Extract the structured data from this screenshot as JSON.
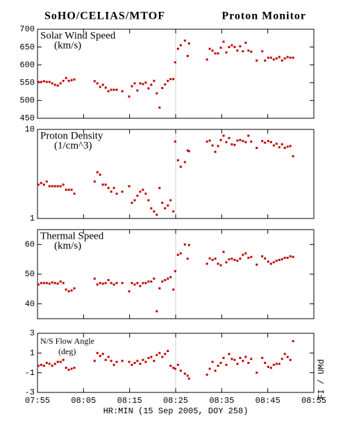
{
  "header": {
    "left": "SoHO/CELIAS/MTOF",
    "right": "Proton Monitor"
  },
  "credit": "FI / UMd",
  "chart_data": [
    {
      "type": "scatter",
      "ylabel": [
        "Solar Wind Speed",
        "(km/s)"
      ],
      "color": "#c00000",
      "ylim": [
        450,
        700
      ],
      "yticks": [
        450,
        500,
        550,
        600,
        650,
        700
      ],
      "vline": 505,
      "x": [
        475.2,
        475.8,
        476.4,
        477.0,
        477.6,
        478.2,
        478.8,
        479.4,
        480.0,
        480.6,
        481.2,
        481.8,
        482.4,
        483.0,
        487.4,
        488.0,
        488.6,
        489.2,
        489.8,
        490.4,
        491.0,
        491.6,
        492.2,
        493.4,
        494.9,
        495.5,
        496.1,
        496.7,
        497.3,
        497.9,
        498.5,
        499.1,
        499.7,
        500.3,
        500.9,
        501.5,
        502.1,
        502.7,
        503.3,
        503.9,
        504.5,
        504.9,
        505.5,
        506.1,
        507.0,
        507.6,
        507.9,
        511.8,
        512.4,
        513.0,
        513.6,
        514.2,
        514.8,
        515.4,
        516.0,
        516.6,
        517.2,
        517.8,
        518.4,
        519.0,
        519.6,
        520.2,
        520.8,
        521.4,
        522.6,
        523.8,
        524.4,
        525.1,
        525.7,
        526.3,
        526.9,
        527.5,
        528.1,
        528.7,
        529.3,
        529.9,
        530.5
      ],
      "values": [
        552,
        552,
        554,
        552,
        552,
        548,
        544,
        542,
        548,
        555,
        563,
        555,
        557,
        559,
        554,
        548,
        538,
        544,
        536,
        526,
        530,
        530,
        530,
        526,
        511,
        540,
        548,
        528,
        548,
        546,
        550,
        534,
        544,
        555,
        520,
        480,
        535,
        545,
        555,
        560,
        560,
        607,
        645,
        655,
        668,
        625,
        660,
        615,
        645,
        640,
        632,
        632,
        648,
        665,
        635,
        650,
        655,
        650,
        640,
        652,
        638,
        662,
        640,
        637,
        612,
        638,
        612,
        620,
        620,
        615,
        618,
        622,
        612,
        618,
        622,
        620,
        620
      ]
    },
    {
      "type": "scatter",
      "ylabel": [
        "Proton Density",
        "(1/cm^3)"
      ],
      "color": "#c00000",
      "log": true,
      "ylim": [
        1,
        10
      ],
      "yticks": [
        1,
        10
      ],
      "values": [
        2.4,
        2.5,
        2.4,
        2.6,
        2.3,
        2.3,
        2.3,
        2.3,
        2.3,
        2.4,
        2.1,
        2.1,
        2.1,
        1.9,
        2.6,
        3.3,
        3.1,
        2.4,
        2.4,
        2.2,
        2.0,
        2.2,
        1.9,
        2.0,
        2.3,
        1.5,
        1.6,
        1.8,
        2.0,
        2.1,
        1.9,
        1.6,
        1.3,
        1.2,
        1.1,
        2.2,
        1.5,
        1.3,
        1.4,
        1.6,
        1.2,
        7.3,
        4.5,
        3.8,
        4.3,
        5.8,
        5.7,
        7.3,
        7.5,
        6.6,
        5.6,
        6.5,
        7.6,
        8.5,
        7.2,
        8.0,
        6.8,
        6.7,
        7.5,
        7.6,
        7.4,
        7.2,
        8.5,
        7.3,
        6.2,
        7.4,
        7.1,
        7.4,
        7.2,
        6.6,
        6.9,
        6.3,
        6.8,
        6.2,
        6.4,
        6.5,
        5.0
      ]
    },
    {
      "type": "scatter",
      "ylabel": [
        "Thermal Speed",
        "(km/s)"
      ],
      "color": "#c00000",
      "ylim": [
        35,
        65
      ],
      "yticks": [
        40,
        50,
        60
      ],
      "values": [
        46.5,
        47,
        47,
        47,
        46.8,
        47.2,
        47,
        46.8,
        47.5,
        47,
        44.8,
        44.2,
        44.5,
        45.2,
        48.5,
        46.5,
        47,
        46.8,
        47,
        48,
        47,
        46.5,
        47,
        47,
        44.2,
        47,
        46.5,
        47,
        46,
        47,
        47,
        47.5,
        47.5,
        48.5,
        37.5,
        45.2,
        47.5,
        48,
        48.5,
        49,
        44.8,
        51,
        56.5,
        57,
        60,
        55.2,
        59.8,
        53.5,
        55.3,
        54.8,
        55.2,
        53.5,
        53,
        57.5,
        54,
        55,
        55.2,
        54.8,
        54.5,
        55.2,
        56.5,
        57,
        55.5,
        55.8,
        53.2,
        56,
        55.3,
        54.2,
        53.5,
        54,
        54.5,
        54.8,
        55,
        55.5,
        55.5,
        56,
        55.8
      ]
    },
    {
      "type": "scatter",
      "ylabel": [
        "N/S Flow Angle",
        "(deg)"
      ],
      "color": "#c00000",
      "ylim": [
        -3,
        3
      ],
      "yticks": [
        -3,
        -1,
        1,
        3
      ],
      "xlim": [
        475,
        535
      ],
      "xlabel": "HR:MIN (15 Sep 2005, DOY 258)",
      "xticks": [
        {
          "value": 475,
          "label": "07:55"
        },
        {
          "value": 485,
          "label": "08:05"
        },
        {
          "value": 495,
          "label": "08:15"
        },
        {
          "value": 505,
          "label": "08:25"
        },
        {
          "value": 515,
          "label": "08:35"
        },
        {
          "value": 525,
          "label": "08:45"
        },
        {
          "value": 535,
          "label": "08:55"
        }
      ],
      "values": [
        -0.3,
        -0.2,
        -0.3,
        0,
        -0.1,
        -0.3,
        -0.1,
        0.1,
        0.1,
        0.3,
        -0.5,
        -0.7,
        -0.6,
        -0.5,
        0.2,
        1.0,
        0.7,
        0.9,
        0.3,
        0.6,
        0.2,
        -0.2,
        0.1,
        0.2,
        0.1,
        -0.2,
        0.0,
        0.2,
        -0.1,
        0.3,
        0.1,
        0.5,
        0.6,
        0.2,
        0.8,
        1.0,
        0.6,
        0.9,
        1.2,
        -0.3,
        -0.5,
        -0.6,
        -0.2,
        -0.8,
        -1.1,
        -1.3,
        -1.6,
        -1.2,
        -0.6,
        0.1,
        -0.8,
        -0.3,
        0.0,
        0.5,
        -0.2,
        0.9,
        0.4,
        0.3,
        -0.1,
        0.5,
        0.2,
        0.6,
        0.0,
        0.4,
        -1.0,
        0.5,
        0.0,
        -0.4,
        -0.5,
        -0.2,
        -0.1,
        -0.1,
        0.4,
        0.9,
        0.6,
        0.3,
        2.2
      ]
    }
  ]
}
